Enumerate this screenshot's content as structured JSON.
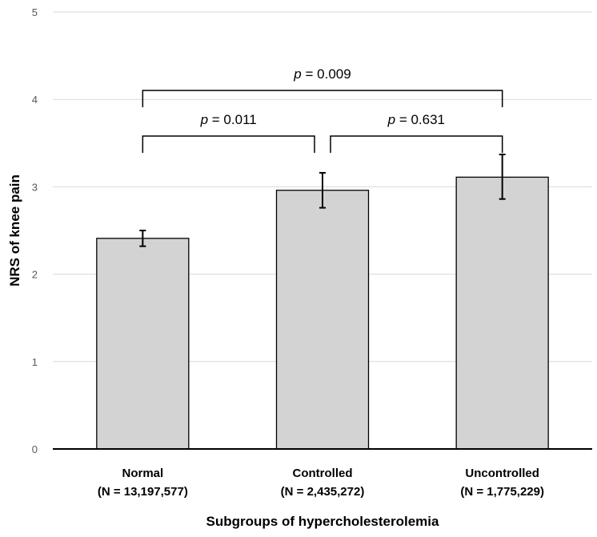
{
  "chart_data": {
    "type": "bar",
    "title": "",
    "xlabel": "Subgroups of hypercholesterolemia",
    "ylabel": "NRS of knee pain",
    "ylim": [
      0,
      5
    ],
    "yticks": [
      "0",
      "1",
      "2",
      "3",
      "4",
      "5"
    ],
    "grid": true,
    "categories": [
      "Normal",
      "Controlled",
      "Uncontrolled"
    ],
    "sample_sizes": [
      "(N = 13,197,577)",
      "(N = 2,435,272)",
      "(N = 1,775,229)"
    ],
    "values": [
      2.41,
      2.96,
      3.11
    ],
    "error_low": [
      2.32,
      2.76,
      2.86
    ],
    "error_high": [
      2.5,
      3.16,
      3.37
    ],
    "bar_color": "#d3d3d3",
    "comparisons": [
      {
        "from": 0,
        "to": 1,
        "p_symbol": "p",
        "p_text": " = 0.011"
      },
      {
        "from": 1,
        "to": 2,
        "p_symbol": "p",
        "p_text": " = 0.631"
      },
      {
        "from": 0,
        "to": 2,
        "p_symbol": "p",
        "p_text": " = 0.009"
      }
    ]
  }
}
